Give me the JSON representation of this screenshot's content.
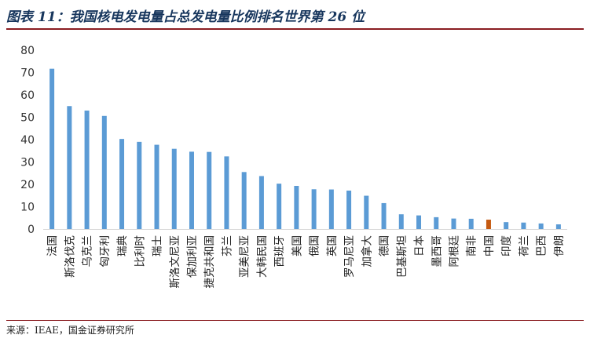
{
  "header": {
    "title": "图表 11：我国核电发电量占总发电量比例排名世界第 26 位"
  },
  "footer": {
    "source": "来源：IEAE，国金证券研究所"
  },
  "chart_data": {
    "type": "bar",
    "title": "",
    "xlabel": "",
    "ylabel": "",
    "ylim": [
      0,
      80
    ],
    "yticks": [
      0,
      10,
      20,
      30,
      40,
      50,
      60,
      70,
      80
    ],
    "grid": false,
    "legend": "none",
    "colors": {
      "default": "#5b9bd5",
      "highlight": "#c55a11"
    },
    "highlight": "中国",
    "categories": [
      "法国",
      "斯洛伐克",
      "乌克兰",
      "匈牙利",
      "瑞典",
      "比利时",
      "瑞士",
      "斯洛文尼亚",
      "保加利亚",
      "捷克共和国",
      "芬兰",
      "亚美尼亚",
      "大韩民国",
      "西班牙",
      "美国",
      "俄国",
      "英国",
      "罗马尼亚",
      "加拿大",
      "德国",
      "巴基斯坦",
      "日本",
      "墨西哥",
      "阿根廷",
      "南非",
      "中国",
      "印度",
      "荷兰",
      "巴西",
      "伊朗"
    ],
    "values": [
      71.7,
      55.0,
      53.0,
      50.6,
      40.3,
      39.0,
      37.7,
      35.9,
      34.6,
      34.5,
      32.5,
      25.5,
      23.7,
      20.3,
      19.3,
      17.8,
      17.7,
      17.2,
      14.9,
      11.6,
      6.6,
      6.1,
      5.3,
      4.7,
      4.6,
      4.2,
      3.1,
      2.9,
      2.5,
      2.1
    ]
  }
}
